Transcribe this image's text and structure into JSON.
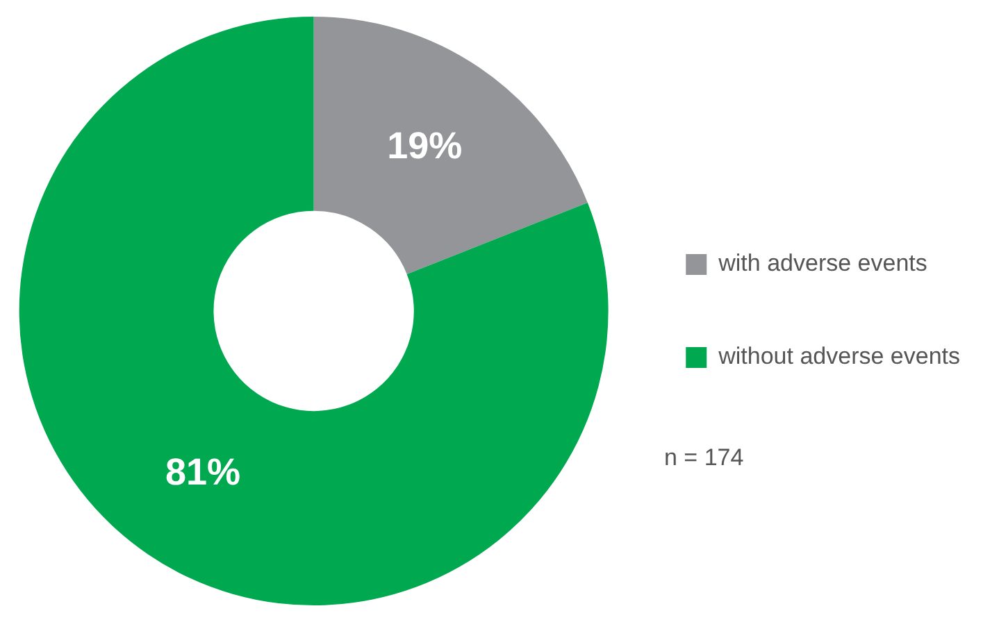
{
  "chart_data": {
    "type": "donut",
    "categories": [
      "with adverse events",
      "without adverse events"
    ],
    "values": [
      19,
      81
    ],
    "colors": [
      "#939598",
      "#00a84f"
    ],
    "value_labels": [
      "19%",
      "81%"
    ],
    "legend": "right",
    "annotations": [
      "n = 174"
    ]
  }
}
